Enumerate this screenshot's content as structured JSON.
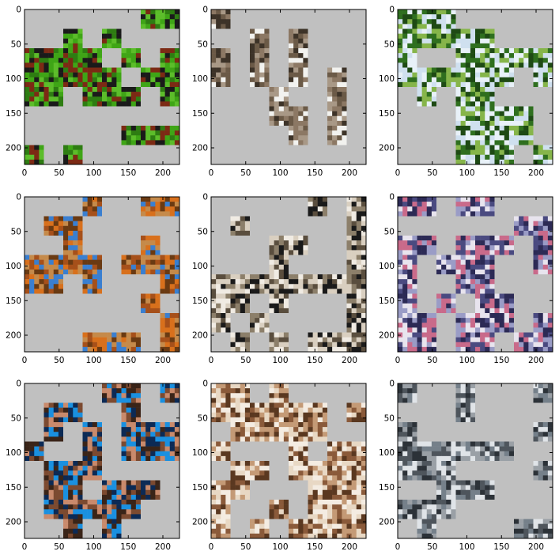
{
  "chart_data": {
    "type": "heatmap",
    "description_of_panels": "3x3 grid of image panels (224x224 px images) with masked 28px patches shown in gray",
    "common": {
      "xlim": [
        0,
        224
      ],
      "ylim": [
        224,
        0
      ],
      "xticks": [
        0,
        50,
        100,
        150,
        200
      ],
      "yticks": [
        0,
        50,
        100,
        150,
        200
      ],
      "patch_size": 28,
      "grid_cells": 8,
      "mask_color": "#c0c0c0"
    },
    "panels": [
      {
        "id": "panel-1",
        "content": "bird standing on green grass",
        "palette": [
          "#3fa516",
          "#5cbd2a",
          "#2e7d12",
          "#1a1a1a",
          "#7c2a14"
        ],
        "mask": [
          [
            1,
            1,
            1,
            1,
            1,
            1,
            0,
            0
          ],
          [
            1,
            1,
            0,
            1,
            0,
            1,
            1,
            1
          ],
          [
            0,
            0,
            0,
            0,
            1,
            0,
            1,
            0
          ],
          [
            0,
            0,
            0,
            0,
            0,
            1,
            0,
            0
          ],
          [
            0,
            0,
            1,
            0,
            0,
            0,
            1,
            0
          ],
          [
            1,
            1,
            1,
            1,
            1,
            1,
            1,
            1
          ],
          [
            1,
            1,
            1,
            1,
            1,
            0,
            0,
            0
          ],
          [
            0,
            1,
            0,
            1,
            1,
            1,
            1,
            1
          ]
        ]
      },
      {
        "id": "panel-2",
        "content": "wooden roof and tree trunk",
        "palette": [
          "#6b5a47",
          "#8c7864",
          "#3d3328",
          "#a89886",
          "#f2f2ef"
        ],
        "mask": [
          [
            0,
            1,
            1,
            1,
            1,
            1,
            1,
            1
          ],
          [
            1,
            1,
            0,
            1,
            0,
            1,
            1,
            1
          ],
          [
            0,
            1,
            0,
            1,
            0,
            1,
            1,
            1
          ],
          [
            0,
            1,
            0,
            1,
            0,
            1,
            0,
            1
          ],
          [
            1,
            1,
            1,
            0,
            1,
            1,
            0,
            1
          ],
          [
            1,
            1,
            1,
            0,
            0,
            1,
            0,
            1
          ],
          [
            1,
            1,
            1,
            1,
            0,
            1,
            0,
            1
          ],
          [
            1,
            1,
            1,
            1,
            1,
            1,
            1,
            1
          ]
        ]
      },
      {
        "id": "panel-3",
        "content": "island with green trees in the sea",
        "palette": [
          "#cfe0ef",
          "#2f6f1f",
          "#1e4a14",
          "#86b54a",
          "#e8f1f8"
        ],
        "mask": [
          [
            0,
            0,
            0,
            1,
            1,
            1,
            1,
            1
          ],
          [
            0,
            0,
            0,
            0,
            0,
            1,
            1,
            1
          ],
          [
            0,
            1,
            1,
            0,
            0,
            0,
            0,
            0
          ],
          [
            0,
            0,
            0,
            0,
            0,
            0,
            1,
            0
          ],
          [
            1,
            0,
            1,
            0,
            0,
            1,
            1,
            1
          ],
          [
            1,
            1,
            1,
            0,
            0,
            0,
            0,
            1
          ],
          [
            1,
            1,
            1,
            0,
            0,
            0,
            0,
            1
          ],
          [
            1,
            1,
            1,
            0,
            0,
            0,
            1,
            0
          ]
        ]
      },
      {
        "id": "panel-4",
        "content": "orange fox head against blue sky",
        "palette": [
          "#d8701c",
          "#a6501a",
          "#3a7fd0",
          "#6a3a12",
          "#c58a4a"
        ],
        "mask": [
          [
            1,
            1,
            1,
            0,
            1,
            1,
            0,
            0
          ],
          [
            1,
            0,
            0,
            1,
            1,
            1,
            1,
            1
          ],
          [
            1,
            1,
            0,
            1,
            1,
            1,
            0,
            1
          ],
          [
            0,
            0,
            0,
            0,
            1,
            0,
            0,
            0
          ],
          [
            0,
            0,
            1,
            0,
            1,
            1,
            1,
            0
          ],
          [
            1,
            1,
            1,
            1,
            1,
            1,
            0,
            1
          ],
          [
            1,
            1,
            1,
            1,
            1,
            1,
            1,
            0
          ],
          [
            1,
            1,
            1,
            0,
            0,
            0,
            1,
            0
          ]
        ]
      },
      {
        "id": "panel-5",
        "content": "black car parked by a building",
        "palette": [
          "#d9cfc0",
          "#1a1a1a",
          "#8c7f6a",
          "#f0ebe3",
          "#5a4e3e"
        ],
        "mask": [
          [
            1,
            1,
            1,
            1,
            1,
            0,
            1,
            0
          ],
          [
            1,
            0,
            1,
            1,
            1,
            1,
            1,
            0
          ],
          [
            1,
            1,
            1,
            0,
            0,
            1,
            1,
            0
          ],
          [
            1,
            1,
            1,
            0,
            1,
            1,
            1,
            0
          ],
          [
            0,
            0,
            0,
            0,
            0,
            0,
            0,
            0
          ],
          [
            0,
            0,
            1,
            0,
            1,
            1,
            1,
            0
          ],
          [
            0,
            1,
            0,
            1,
            1,
            1,
            1,
            0
          ],
          [
            1,
            0,
            1,
            0,
            1,
            0,
            0,
            0
          ]
        ]
      },
      {
        "id": "panel-6",
        "content": "group of people in colorful clothes",
        "palette": [
          "#9a9cc6",
          "#c96a8a",
          "#2c2a55",
          "#e8e4ee",
          "#4a4a80"
        ],
        "mask": [
          [
            0,
            0,
            1,
            0,
            0,
            1,
            1,
            1
          ],
          [
            1,
            1,
            1,
            1,
            1,
            1,
            0,
            0
          ],
          [
            0,
            0,
            1,
            0,
            0,
            0,
            1,
            0
          ],
          [
            0,
            1,
            0,
            0,
            0,
            1,
            1,
            0
          ],
          [
            0,
            1,
            1,
            0,
            0,
            1,
            1,
            1
          ],
          [
            0,
            1,
            0,
            1,
            0,
            0,
            1,
            1
          ],
          [
            0,
            0,
            1,
            0,
            0,
            0,
            1,
            0
          ],
          [
            0,
            0,
            1,
            0,
            0,
            1,
            0,
            0
          ]
        ]
      },
      {
        "id": "panel-7",
        "content": "woman's face and blue clothing",
        "palette": [
          "#c98a6c",
          "#3a2418",
          "#1a90e0",
          "#7c4a30",
          "#0c2a55"
        ],
        "mask": [
          [
            1,
            1,
            1,
            1,
            0,
            0,
            1,
            0
          ],
          [
            1,
            0,
            0,
            1,
            1,
            0,
            1,
            1
          ],
          [
            1,
            0,
            1,
            0,
            1,
            0,
            0,
            0
          ],
          [
            0,
            1,
            1,
            0,
            1,
            0,
            0,
            0
          ],
          [
            1,
            0,
            0,
            0,
            1,
            1,
            1,
            1
          ],
          [
            1,
            0,
            0,
            1,
            0,
            0,
            0,
            1
          ],
          [
            1,
            0,
            0,
            0,
            0,
            0,
            1,
            1
          ],
          [
            1,
            1,
            0,
            1,
            0,
            1,
            1,
            1
          ]
        ]
      },
      {
        "id": "panel-8",
        "content": "sepia close-up of a wooden post",
        "palette": [
          "#e8d8c4",
          "#8a5a3a",
          "#5a3820",
          "#f4ece2",
          "#c49a76"
        ],
        "mask": [
          [
            0,
            0,
            1,
            0,
            1,
            1,
            1,
            1
          ],
          [
            0,
            0,
            0,
            0,
            0,
            0,
            1,
            0
          ],
          [
            1,
            0,
            0,
            0,
            0,
            0,
            1,
            1
          ],
          [
            0,
            1,
            1,
            1,
            0,
            1,
            0,
            0
          ],
          [
            1,
            0,
            0,
            1,
            0,
            0,
            0,
            0
          ],
          [
            0,
            0,
            1,
            1,
            1,
            0,
            0,
            0
          ],
          [
            0,
            1,
            1,
            0,
            1,
            0,
            0,
            0
          ],
          [
            0,
            1,
            0,
            1,
            0,
            0,
            0,
            0
          ]
        ]
      },
      {
        "id": "panel-9",
        "content": "soldier near a tank, grayscale scene",
        "palette": [
          "#9aa0a6",
          "#4e555c",
          "#e0e4e8",
          "#2c3238",
          "#75808a"
        ],
        "mask": [
          [
            0,
            1,
            1,
            0,
            1,
            1,
            1,
            0
          ],
          [
            1,
            1,
            1,
            0,
            1,
            1,
            1,
            1
          ],
          [
            0,
            1,
            1,
            1,
            1,
            1,
            1,
            0
          ],
          [
            0,
            0,
            0,
            0,
            0,
            0,
            1,
            1
          ],
          [
            0,
            0,
            0,
            1,
            1,
            1,
            1,
            0
          ],
          [
            1,
            1,
            0,
            0,
            0,
            1,
            1,
            1
          ],
          [
            0,
            0,
            0,
            1,
            1,
            1,
            1,
            1
          ],
          [
            1,
            0,
            1,
            1,
            1,
            1,
            0,
            0
          ]
        ]
      }
    ]
  }
}
